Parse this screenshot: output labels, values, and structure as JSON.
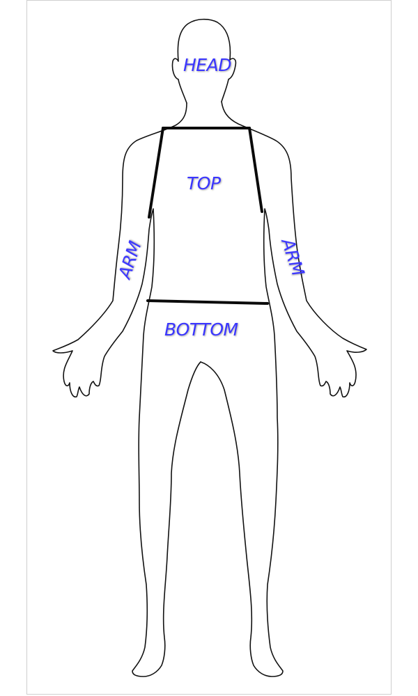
{
  "labels": {
    "head": "HEAD",
    "top": "TOP",
    "arm_left": "ARM",
    "arm_right": "ARM",
    "bottom": "BOTTOM"
  },
  "colors": {
    "label": "#3a35ff",
    "outline": "#111111",
    "frame": "#cfcfcf"
  }
}
